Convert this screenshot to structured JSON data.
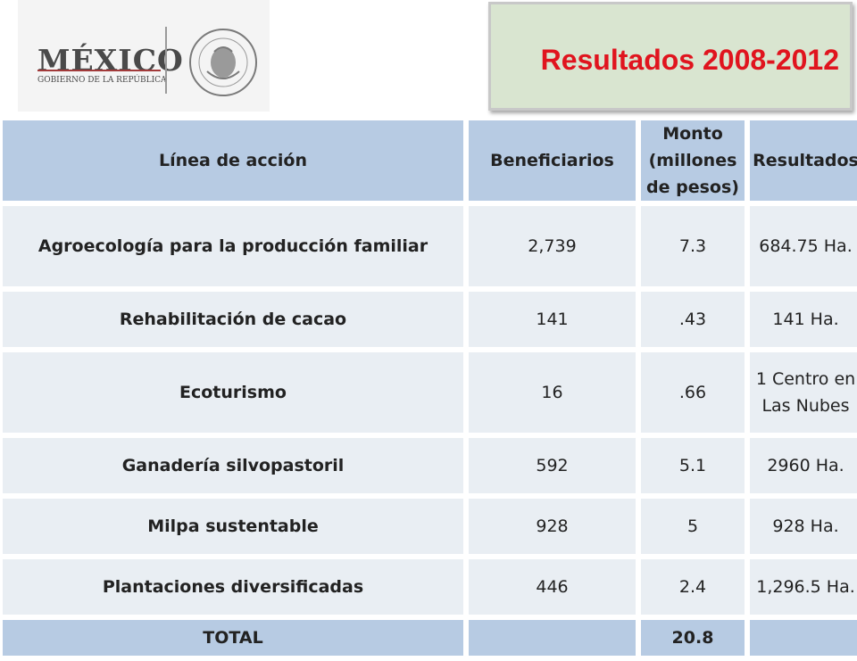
{
  "logo": {
    "country": "MÉXICO",
    "government": "GOBIERNO DE LA REPÚBLICA",
    "seal_icon": "coat-of-arms-seal-icon"
  },
  "title": "Resultados 2008-2012",
  "colors": {
    "title_red": "#e0141e",
    "header_blue": "#b7cbe3",
    "cell_gray": "#e9eef3",
    "title_box_green": "#d9e5d0"
  },
  "table": {
    "headers": {
      "linea": "Línea de acción",
      "beneficiarios": "Beneficiarios",
      "monto": "Monto (millones de pesos)",
      "resultados": "Resultados"
    },
    "rows": [
      {
        "linea": "Agroecología para la producción familiar",
        "beneficiarios": "2,739",
        "monto": "7.3",
        "resultados": "684.75 Ha."
      },
      {
        "linea": "Rehabilitación de cacao",
        "beneficiarios": "141",
        "monto": ".43",
        "resultados": "141 Ha."
      },
      {
        "linea": "Ecoturismo",
        "beneficiarios": "16",
        "monto": ".66",
        "resultados": "1 Centro en Las Nubes"
      },
      {
        "linea": "Ganadería silvopastoril",
        "beneficiarios": "592",
        "monto": "5.1",
        "resultados": "2960 Ha."
      },
      {
        "linea": "Milpa sustentable",
        "beneficiarios": "928",
        "monto": "5",
        "resultados": "928 Ha."
      },
      {
        "linea": "Plantaciones diversificadas",
        "beneficiarios": "446",
        "monto": "2.4",
        "resultados": "1,296.5 Ha."
      }
    ],
    "total": {
      "linea": "TOTAL",
      "beneficiarios": "",
      "monto": "20.8",
      "resultados": ""
    }
  }
}
